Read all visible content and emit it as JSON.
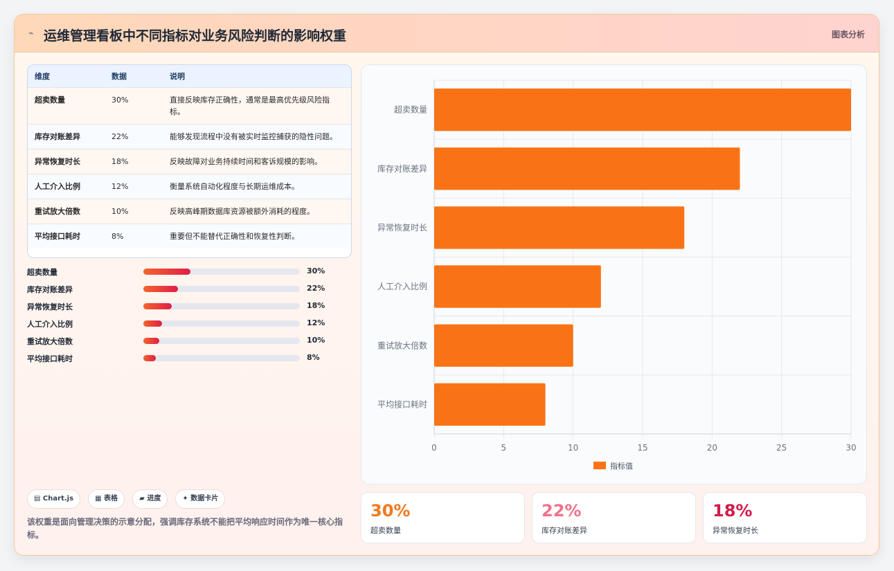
{
  "header": {
    "icon": "⌁",
    "title": "运维管理看板中不同指标对业务风险判断的影响权重",
    "tag": "图表分析"
  },
  "table": {
    "headers": [
      "维度",
      "数据",
      "说明"
    ],
    "rows": [
      {
        "name": "超卖数量",
        "value": "30%",
        "desc": "直接反映库存正确性，通常是最高优先级风险指标。"
      },
      {
        "name": "库存对账差异",
        "value": "22%",
        "desc": "能够发现流程中没有被实时监控捕获的隐性问题。"
      },
      {
        "name": "异常恢复时长",
        "value": "18%",
        "desc": "反映故障对业务持续时间和客诉规模的影响。"
      },
      {
        "name": "人工介入比例",
        "value": "12%",
        "desc": "衡量系统自动化程度与长期运维成本。"
      },
      {
        "name": "重试放大倍数",
        "value": "10%",
        "desc": "反映高峰期数据库资源被额外消耗的程度。"
      },
      {
        "name": "平均接口耗时",
        "value": "8%",
        "desc": "重要但不能替代正确性和恢复性判断。"
      }
    ]
  },
  "progress": [
    {
      "label": "超卖数量",
      "percent": 30,
      "text": "30%"
    },
    {
      "label": "库存对账差异",
      "percent": 22,
      "text": "22%"
    },
    {
      "label": "异常恢复时长",
      "percent": 18,
      "text": "18%"
    },
    {
      "label": "人工介入比例",
      "percent": 12,
      "text": "12%"
    },
    {
      "label": "重试放大倍数",
      "percent": 10,
      "text": "10%"
    },
    {
      "label": "平均接口耗时",
      "percent": 8,
      "text": "8%"
    }
  ],
  "chips": [
    "▤ Chart.js",
    "▦ 表格",
    "▰ 进度",
    "✦ 数据卡片"
  ],
  "note": "该权重是面向管理决策的示意分配，强调库存系统不能把平均响应时间作为唯一核心指标。",
  "stats": [
    {
      "value": "30%",
      "label": "超卖数量",
      "color": "#f07a1c"
    },
    {
      "value": "22%",
      "label": "库存对账差异",
      "color": "#f0728a"
    },
    {
      "value": "18%",
      "label": "异常恢复时长",
      "color": "#d11c4b"
    }
  ],
  "chart_data": {
    "type": "bar",
    "orientation": "horizontal",
    "categories": [
      "超卖数量",
      "库存对账差异",
      "异常恢复时长",
      "人工介入比例",
      "重试放大倍数",
      "平均接口耗时"
    ],
    "series": [
      {
        "name": "指标值",
        "values": [
          30,
          22,
          18,
          12,
          10,
          8
        ],
        "color": "#f97316"
      }
    ],
    "xlim": [
      0,
      30
    ],
    "xticks": [
      0,
      5,
      10,
      15,
      20,
      25,
      30
    ],
    "grid": true,
    "legend": "bottom"
  }
}
